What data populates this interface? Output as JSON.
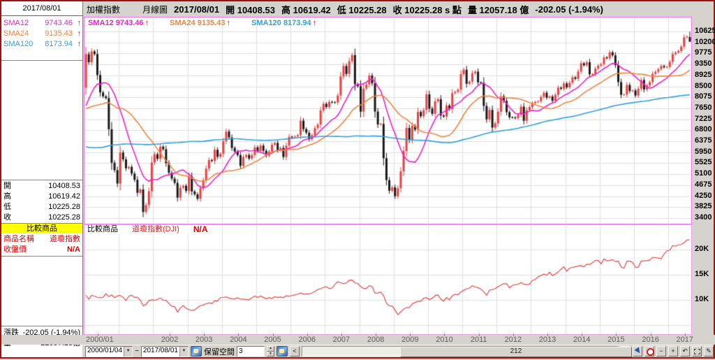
{
  "window": {
    "border_color": "#9a1310",
    "background": "#d6d3ce"
  },
  "header": {
    "symbol": "加權指數",
    "period": "月線圖",
    "fields": [
      "2017/08/01",
      "開 10408.53",
      "高 10619.42",
      "低 10225.28",
      "收 10225.28 s 點",
      "量 12057.18 億",
      "-202.05 (-1.94%)"
    ]
  },
  "ui": {
    "up_arrow": "↑",
    "dropdown_arrow": "▼",
    "tilde": "~",
    "minus": "−",
    "plus": "+",
    "undo": "↶",
    "pencil": "✎",
    "up_small": "▲",
    "down_small": "▼"
  },
  "sidebar": {
    "date": "2017/08/01",
    "sma_rows": [
      {
        "label": "SMA12",
        "value": "9743.46",
        "color": "#f020c8"
      },
      {
        "label": "SMA24",
        "value": "9135.43",
        "color": "#ee8442"
      },
      {
        "label": "SMA120",
        "value": "8173.94",
        "color": "#30a0d8"
      }
    ],
    "ohlc_rows": [
      {
        "label": "開",
        "value": "10408.53"
      },
      {
        "label": "高",
        "value": "10619.42"
      },
      {
        "label": "低",
        "value": "10225.28"
      },
      {
        "label": "收",
        "value": "10225.28"
      }
    ],
    "compare": {
      "header": "比較商品",
      "rows": [
        {
          "label": "商品名稱",
          "value": "道瓊指數"
        },
        {
          "label": "收盤價",
          "value": "N/A"
        }
      ]
    },
    "bottom_rows": [
      {
        "label": "漲跌",
        "value": "-202.05 (-1.94%)"
      },
      {
        "label": "量",
        "value": "12057.18億"
      }
    ]
  },
  "legend": [
    {
      "text": "SMA12 9743.46",
      "color": "#f020c8"
    },
    {
      "text": "SMA24 9135.43",
      "color": "#ee8442"
    },
    {
      "text": "SMA120 8173.94",
      "color": "#30a0d8"
    }
  ],
  "compare_header": {
    "label": "比較商品",
    "name": "道瓊指數(DJI)",
    "na": "N/A"
  },
  "status_bar": {
    "from_date": "2000/01/04",
    "to_date": "2017/08/01",
    "reserve_label": "保留空間",
    "reserve_value": "3",
    "scroll_value": "212",
    "prev_button": "<",
    "next_button": ">"
  },
  "chart_data": [
    {
      "type": "candlestick",
      "title": "加權指數 月線圖",
      "x_start": "2000/01",
      "x_end": "2017/08",
      "x_labels": [
        "2000/01",
        "2002",
        "2003",
        "2004",
        "2005",
        "2006",
        "2007",
        "2008",
        "2009",
        "2010",
        "2011",
        "2012",
        "2013",
        "2014",
        "2015",
        "2016",
        "2017"
      ],
      "y_ticks": [
        10625,
        10200,
        9775,
        9350,
        8925,
        8500,
        8075,
        7650,
        7225,
        6800,
        6375,
        5950,
        5525,
        5100,
        4675,
        4250,
        3825,
        3400
      ],
      "colors": {
        "up": "#e84040",
        "down": "#181818"
      },
      "first_open": 8448,
      "last_candle": {
        "open": 10408.53,
        "high": 10619.42,
        "low": 10225.28,
        "close": 10225.28
      },
      "close": [
        9744,
        9435,
        9854,
        9747,
        8939,
        8265,
        8115,
        8043,
        6841,
        5544,
        5256,
        4739,
        5936,
        5674,
        5328,
        5380,
        5122,
        4883,
        4380,
        4509,
        3636,
        3904,
        4442,
        5551,
        5872,
        5696,
        6167,
        6065,
        5530,
        5154,
        4930,
        4763,
        4191,
        4579,
        4647,
        4452,
        5016,
        4432,
        4321,
        4148,
        4555,
        4872,
        5318,
        5650,
        5611,
        6045,
        5772,
        5890,
        6375,
        6750,
        6522,
        6117,
        5977,
        5839,
        5420,
        5765,
        5845,
        5705,
        5844,
        6139,
        5994,
        6207,
        6005,
        5818,
        5975,
        6241,
        6312,
        6033,
        6118,
        5764,
        6203,
        6548,
        6532,
        6561,
        6614,
        7171,
        6847,
        6704,
        6454,
        6611,
        6884,
        7021,
        7568,
        7824,
        7699,
        7901,
        7884,
        7875,
        8145,
        8883,
        9287,
        8982,
        9476,
        9711,
        8586,
        8506,
        7521,
        8413,
        8573,
        8920,
        8619,
        7524,
        7024,
        7046,
        5719,
        4871,
        4460,
        4591,
        4248,
        4557,
        5210,
        5993,
        6890,
        6432,
        6972,
        6826,
        7509,
        7340,
        7583,
        8188,
        7640,
        7436,
        7920,
        8004,
        7374,
        7329,
        7760,
        7616,
        8237,
        8287,
        8372,
        8973,
        9145,
        8599,
        8683,
        9008,
        9069,
        8653,
        8644,
        7741,
        7225,
        7588,
        6904,
        7072,
        7517,
        8121,
        7933,
        7501,
        7301,
        7296,
        7270,
        7397,
        7715,
        7166,
        7580,
        7699,
        7850,
        7898,
        7919,
        8093,
        8254,
        8062,
        8107,
        7937,
        8173,
        8450,
        8406,
        8611,
        8462,
        8639,
        8849,
        8791,
        9075,
        9393,
        9315,
        9436,
        8966,
        8974,
        9187,
        9307,
        9361,
        9622,
        9586,
        9820,
        9701,
        9323,
        8665,
        8174,
        8181,
        8554,
        8320,
        8338,
        8145,
        8411,
        8744,
        8377,
        8535,
        8666,
        8984,
        9068,
        9166,
        9290,
        9240,
        9253,
        9447,
        9750,
        9811,
        9872,
        10040,
        10395,
        10427,
        10225.28
      ],
      "pre_close": [
        10900,
        12000,
        11200,
        10000,
        8800,
        7800,
        6300,
        4800,
        3600,
        2900,
        3600,
        4530,
        3800,
        4100,
        4900,
        5500,
        5700,
        5300,
        5100,
        4600,
        4400,
        4300,
        4450,
        4601,
        4900,
        5100,
        4900,
        4400,
        4350,
        4500,
        4200,
        3950,
        3650,
        3500,
        3700,
        3377,
        3300,
        3420,
        4500,
        4600,
        4300,
        4050,
        3900,
        3950,
        3850,
        4200,
        4800,
        6071,
        5600,
        5300,
        5200,
        5600,
        5900,
        5950,
        6650,
        6800,
        7000,
        6300,
        6500,
        7111,
        6600,
        6700,
        6500,
        5800,
        5700,
        5900,
        5450,
        5000,
        4800,
        4750,
        4900,
        5174,
        4900,
        4900,
        5000,
        5550,
        5850,
        6300,
        6250,
        6150,
        6400,
        6650,
        6900,
        6934,
        7300,
        7900,
        8000,
        8500,
        8200,
        9000,
        10000,
        9750,
        8700,
        7700,
        7800,
        8187,
        7900,
        8500,
        8900,
        8900,
        8400,
        7550,
        7650,
        7000,
        6850,
        7000,
        7200,
        6418,
        5950,
        6320,
        6881,
        7371,
        7316,
        8467,
        7327,
        8074,
        7599,
        7650,
        7800,
        8449
      ],
      "sma": [
        {
          "name": "SMA12",
          "period": 12,
          "color": "#f020c8",
          "last_value": 9743.46
        },
        {
          "name": "SMA24",
          "period": 24,
          "color": "#ee8442",
          "last_value": 9135.43
        },
        {
          "name": "SMA120",
          "period": 120,
          "color": "#30a0d8",
          "last_value": 8173.94
        }
      ]
    },
    {
      "type": "line",
      "name": "道瓊指數(DJI)",
      "color": "#e64545",
      "y_ticks": [
        "20K",
        "15K",
        "10K"
      ],
      "y_tick_values": [
        20000,
        15000,
        10000
      ],
      "grid_values": [
        20000,
        15000,
        10000,
        5000
      ],
      "values": [
        10940,
        10128,
        10922,
        10734,
        10522,
        10448,
        10522,
        11215,
        10651,
        10971,
        10414,
        10788,
        10887,
        10495,
        9879,
        10735,
        10912,
        10502,
        10523,
        9950,
        8848,
        9075,
        9852,
        10022,
        9920,
        10106,
        10404,
        9946,
        9925,
        9243,
        8737,
        8664,
        7592,
        8397,
        8896,
        8342,
        8054,
        7891,
        7992,
        8480,
        8850,
        8985,
        9234,
        9416,
        9275,
        9801,
        9782,
        10454,
        10488,
        10584,
        10358,
        10226,
        10188,
        10435,
        10140,
        10174,
        10080,
        10027,
        10428,
        10783,
        10490,
        10766,
        10504,
        10193,
        10467,
        10275,
        10641,
        10482,
        10569,
        10440,
        10806,
        10718,
        10865,
        10993,
        11109,
        11367,
        11168,
        11150,
        11186,
        11381,
        11679,
        12080,
        12222,
        12463,
        12622,
        12269,
        12354,
        13063,
        13628,
        13409,
        13212,
        13358,
        13896,
        13930,
        13372,
        13265,
        12650,
        12266,
        12263,
        12820,
        12638,
        11350,
        11378,
        11544,
        10851,
        9325,
        8829,
        8776,
        8001,
        7063,
        7609,
        8168,
        8500,
        8447,
        9172,
        9496,
        9712,
        9713,
        10345,
        10428,
        10067,
        10325,
        10857,
        11009,
        10137,
        9774,
        10466,
        10015,
        10788,
        11118,
        11006,
        11578,
        11892,
        12226,
        12320,
        12811,
        12570,
        12414,
        12143,
        11614,
        10913,
        11955,
        12046,
        12218,
        12633,
        12952,
        13212,
        13214,
        12393,
        12880,
        13009,
        13091,
        13437,
        13096,
        13026,
        13104,
        13861,
        14054,
        14579,
        14840,
        15116,
        14910,
        15500,
        14810,
        15130,
        15546,
        16086,
        16577,
        15699,
        16322,
        16458,
        16581,
        16717,
        16827,
        16563,
        17098,
        17043,
        17391,
        17828,
        17823,
        17165,
        18133,
        17776,
        17841,
        18011,
        17620,
        17690,
        16528,
        16285,
        17664,
        17720,
        17425,
        16466,
        16517,
        17685,
        17774,
        17787,
        17930,
        18432,
        18401,
        18308,
        18142,
        19124,
        19763,
        19864,
        20812,
        20663,
        20941,
        21009,
        21350,
        21891,
        21948
      ]
    }
  ]
}
